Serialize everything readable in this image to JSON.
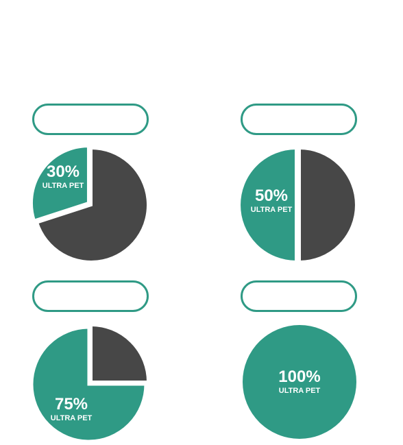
{
  "colors": {
    "teal": "#2f9a85",
    "dark": "#474747",
    "background": "#ffffff"
  },
  "chart_data": [
    {
      "type": "pie",
      "value_percent": 30,
      "label": "30%",
      "sublabel": "ULTRA PET",
      "series": [
        {
          "name": "ULTRA PET",
          "value": 30
        },
        {
          "name": "",
          "value": 70
        }
      ]
    },
    {
      "type": "pie",
      "value_percent": 50,
      "label": "50%",
      "sublabel": "ULTRA PET",
      "series": [
        {
          "name": "ULTRA PET",
          "value": 50
        },
        {
          "name": "",
          "value": 50
        }
      ]
    },
    {
      "type": "pie",
      "value_percent": 75,
      "label": "75%",
      "sublabel": "ULTRA PET",
      "series": [
        {
          "name": "ULTRA PET",
          "value": 75
        },
        {
          "name": "",
          "value": 25
        }
      ]
    },
    {
      "type": "pie",
      "value_percent": 100,
      "label": "100%",
      "sublabel": "ULTRA PET",
      "series": [
        {
          "name": "ULTRA PET",
          "value": 100
        }
      ]
    }
  ]
}
